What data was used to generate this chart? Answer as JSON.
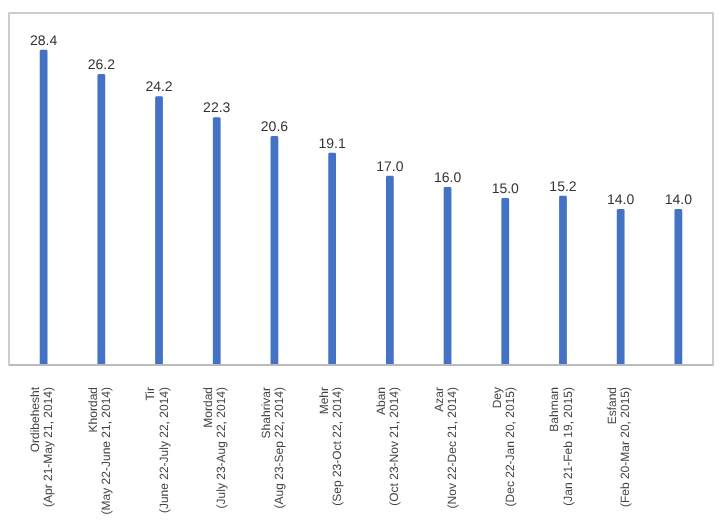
{
  "chart_data": {
    "type": "bar",
    "categories": [
      "Ordibehesht\n(Apr 21-May 21, 2014)",
      "Khordad\n(May 22-June 21, 2014)",
      "Tir\n(June 22-July 22, 2014)",
      "Mordad\n(July 23-Aug 22, 2014)",
      "Shahrivar\n(Aug 23-Sep 22, 2014)",
      "Mehr\n(Sep 23-Oct 22, 2014)",
      "Aban\n(Oct 23-Nov 21, 2014)",
      "Azar\n(Nov 22-Dec 21, 2014)",
      "Dey\n(Dec 22-Jan 20, 2015)",
      "Bahman\n(Jan 21-Feb 19, 2015)",
      "Esfand\n(Feb 20-Mar 20, 2015)",
      null
    ],
    "values": [
      28.4,
      26.2,
      24.2,
      22.3,
      20.6,
      19.1,
      17.0,
      16.0,
      15.0,
      15.2,
      14.0,
      14.0
    ],
    "value_labels": [
      "28.4",
      "26.2",
      "24.2",
      "22.3",
      "20.6",
      "19.1",
      "17.0",
      "16.0",
      "15.0",
      "15.2",
      "14.0",
      "14.0"
    ],
    "color": "#4472c4",
    "grid": false
  }
}
